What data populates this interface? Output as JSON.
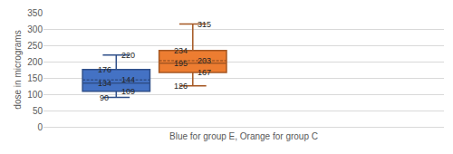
{
  "chart_data": {
    "type": "box",
    "y_label": "dose in micrograms",
    "x_label": "Blue for group E, Orange for group C",
    "series": [
      {
        "color": "#4472c4",
        "min": 90,
        "q1": 109,
        "median": 134,
        "mean": 144,
        "q3": 176,
        "max": 220
      },
      {
        "color": "#ed7d31",
        "min": 126,
        "q1": 167,
        "median": 195,
        "mean": 203,
        "q3": 234,
        "max": 315
      }
    ],
    "ylim": [
      0,
      350
    ],
    "yticks": [
      0,
      50,
      100,
      150,
      200,
      250,
      300,
      350
    ],
    "grid": true,
    "data_labels": true,
    "tick_labels": "y"
  }
}
